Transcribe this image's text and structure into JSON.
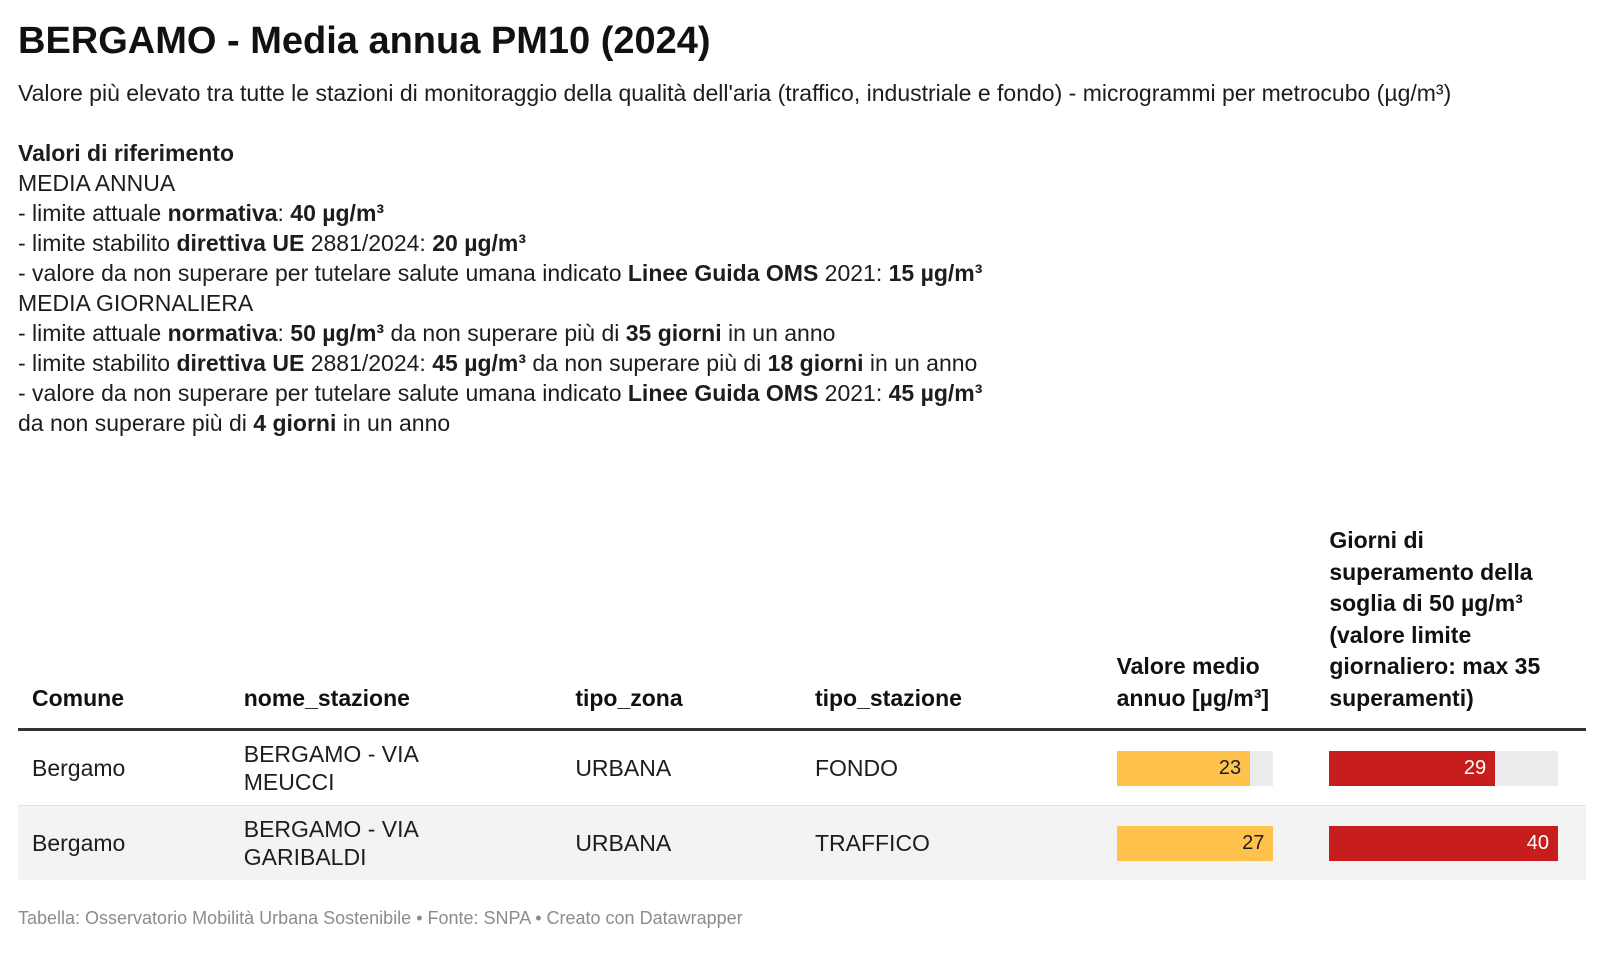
{
  "title": "BERGAMO - Media annua PM10 (2024)",
  "subtitle": "Valore più elevato tra tutte le stazioni di monitoraggio della qualità dell'aria (traffico, industriale e fondo) - microgrammi per metrocubo (µg/m³)",
  "notes": {
    "heading": "Valori di riferimento",
    "annual_label": "MEDIA ANNUA",
    "annual": [
      {
        "pre": "- limite attuale ",
        "b1": "normativa",
        "mid": ": ",
        "b2": "40 µg/m³",
        "post": ""
      },
      {
        "pre": "- limite stabilito ",
        "b1": "direttiva UE",
        "mid": " 2881/2024: ",
        "b2": "20 µg/m³",
        "post": ""
      },
      {
        "pre": "- valore da non superare per tutelare salute umana indicato ",
        "b1": "Linee Guida OMS",
        "mid": " 2021: ",
        "b2": "15 µg/m³",
        "post": ""
      }
    ],
    "daily_label": "MEDIA GIORNALIERA",
    "daily": [
      {
        "pre": "- limite attuale ",
        "b1": "normativa",
        "mid": ": ",
        "b2": "50 µg/m³",
        "mid2": " da non superare più di ",
        "b3": "35 giorni",
        "post": " in un anno"
      },
      {
        "pre": "- limite stabilito ",
        "b1": "direttiva UE",
        "mid": " 2881/2024: ",
        "b2": "45 µg/m³",
        "mid2": " da non superare più di ",
        "b3": "18 giorni",
        "post": " in un anno"
      },
      {
        "pre": "- valore da non superare per tutelare salute umana indicato ",
        "b1": "Linee Guida OMS",
        "mid": " 2021: ",
        "b2": "45 µg/m³",
        "mid2": "",
        "b3": "",
        "post": ""
      }
    ],
    "daily_last": {
      "pre": "da non superare più di ",
      "b": "4 giorni",
      "post": " in un anno"
    }
  },
  "table": {
    "headers": {
      "comune": "Comune",
      "nome_stazione": "nome_stazione",
      "tipo_zona": "tipo_zona",
      "tipo_stazione": "tipo_stazione",
      "valore": "Valore medio annuo [µg/m³]",
      "giorni": "Giorni di superamento della soglia di 50 µg/m³ (valore limite giornaliero: max 35 superamenti)"
    },
    "rows": [
      {
        "comune": "Bergamo",
        "nome_stazione": "BERGAMO - VIA MEUCCI",
        "tipo_zona": "URBANA",
        "tipo_stazione": "FONDO",
        "valore": 23,
        "giorni": 29
      },
      {
        "comune": "Bergamo",
        "nome_stazione": "BERGAMO - VIA GARIBALDI",
        "tipo_zona": "URBANA",
        "tipo_stazione": "TRAFFICO",
        "valore": 27,
        "giorni": 40
      }
    ],
    "scale": {
      "valore_max": 27,
      "giorni_max": 40
    }
  },
  "colors": {
    "valore_bar": "#ffc34d",
    "giorni_bar": "#c71e1d",
    "bar_track": "#ececec"
  },
  "footer": "Tabella: Osservatorio Mobilità Urbana Sostenibile • Fonte: SNPA • Creato con Datawrapper"
}
